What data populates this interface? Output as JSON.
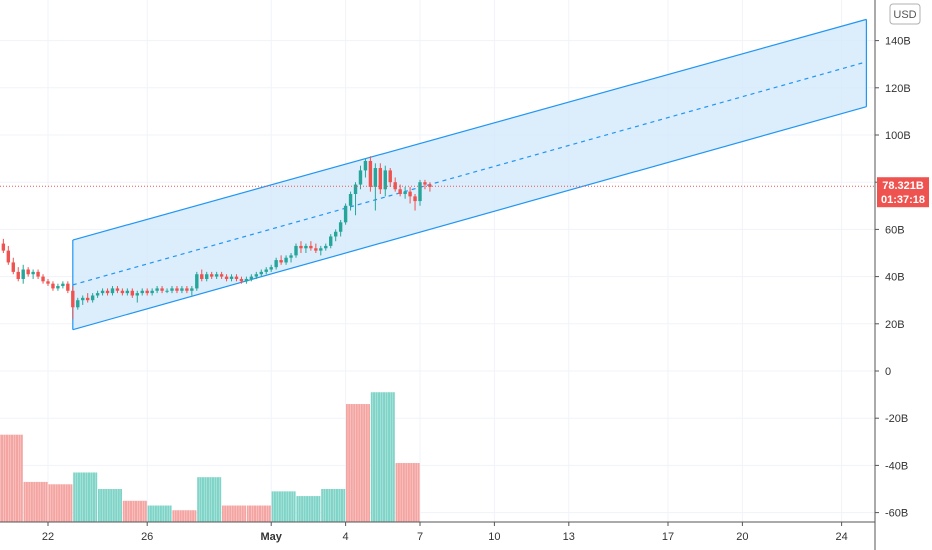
{
  "chart_data": {
    "type": "candlestick",
    "currency": "USD",
    "y_axis": {
      "range": [
        -66,
        153
      ],
      "ticks": [
        "140B",
        "120B",
        "100B",
        "80B",
        "60B",
        "40B",
        "20B",
        "0",
        "-20B",
        "-40B",
        "-60B"
      ],
      "tick_values": [
        140,
        120,
        100,
        80,
        60,
        40,
        20,
        0,
        -20,
        -40,
        -60
      ]
    },
    "x_axis": {
      "ticks": [
        {
          "label": "22",
          "day": 0,
          "bold": false
        },
        {
          "label": "26",
          "day": 4,
          "bold": false
        },
        {
          "label": "May",
          "day": 9,
          "bold": true
        },
        {
          "label": "4",
          "day": 12,
          "bold": false
        },
        {
          "label": "7",
          "day": 15,
          "bold": false
        },
        {
          "label": "10",
          "day": 18,
          "bold": false
        },
        {
          "label": "13",
          "day": 21,
          "bold": false
        },
        {
          "label": "17",
          "day": 25,
          "bold": false
        },
        {
          "label": "20",
          "day": 28,
          "bold": false
        },
        {
          "label": "24",
          "day": 32,
          "bold": false
        }
      ]
    },
    "last_price": "78.321B",
    "last_price_value": 78.3,
    "countdown": "01:37:18",
    "colors": {
      "up": "#26a69a",
      "down": "#ef5350",
      "up_volume": "#7fd4c8",
      "down_volume": "#f4a4a1",
      "channel_line": "#2196f3",
      "channel_fill": "#d6eafb",
      "price_tag": "#ef5350"
    },
    "channel": {
      "start_day": 1,
      "end_day": 33,
      "upper": [
        55.5,
        149
      ],
      "middle": [
        36.5,
        131
      ],
      "lower": [
        17.5,
        112
      ]
    },
    "candles": [
      [
        -1.8,
        54,
        56,
        50,
        51
      ],
      [
        -1.6,
        51,
        53,
        45,
        46
      ],
      [
        -1.4,
        46,
        48,
        41,
        42
      ],
      [
        -1.2,
        42,
        44,
        38,
        39
      ],
      [
        -1.0,
        39,
        45,
        37,
        43
      ],
      [
        -0.8,
        43,
        44,
        40,
        41
      ],
      [
        -0.6,
        41,
        43,
        39,
        42
      ],
      [
        -0.4,
        42,
        43,
        39,
        40
      ],
      [
        -0.2,
        40,
        41,
        37,
        38
      ],
      [
        0.0,
        38,
        39,
        36,
        37
      ],
      [
        0.2,
        37,
        38,
        34,
        35
      ],
      [
        0.4,
        35,
        37,
        34,
        36
      ],
      [
        0.6,
        36,
        38,
        35,
        37
      ],
      [
        0.8,
        37,
        38,
        33,
        34
      ],
      [
        1.0,
        34,
        36,
        22,
        27
      ],
      [
        1.2,
        27,
        31,
        26,
        30
      ],
      [
        1.4,
        30,
        32,
        28,
        31
      ],
      [
        1.6,
        31,
        33,
        29,
        30
      ],
      [
        1.8,
        30,
        33,
        29,
        32
      ],
      [
        2.0,
        32,
        34,
        31,
        33
      ],
      [
        2.2,
        33,
        35,
        32,
        34
      ],
      [
        2.4,
        34,
        35,
        32,
        33
      ],
      [
        2.6,
        33,
        36,
        32,
        35
      ],
      [
        2.8,
        35,
        36,
        33,
        34
      ],
      [
        3.0,
        34,
        35,
        32,
        33
      ],
      [
        3.2,
        33,
        35,
        32,
        34
      ],
      [
        3.4,
        34,
        35,
        31,
        32
      ],
      [
        3.6,
        32,
        34,
        29,
        33
      ],
      [
        3.8,
        33,
        35,
        32,
        34
      ],
      [
        4.0,
        34,
        35,
        32,
        33
      ],
      [
        4.2,
        33,
        35,
        32,
        34
      ],
      [
        4.4,
        34,
        36,
        33,
        35
      ],
      [
        4.6,
        35,
        36,
        33,
        34
      ],
      [
        4.8,
        34,
        35,
        33,
        34
      ],
      [
        5.0,
        34,
        36,
        33,
        35
      ],
      [
        5.2,
        35,
        36,
        33,
        34
      ],
      [
        5.4,
        34,
        36,
        33,
        35
      ],
      [
        5.6,
        35,
        36,
        33,
        34
      ],
      [
        5.8,
        34,
        36,
        32,
        35
      ],
      [
        6.0,
        35,
        42,
        34,
        41
      ],
      [
        6.2,
        41,
        43,
        38,
        39
      ],
      [
        6.4,
        39,
        42,
        38,
        41
      ],
      [
        6.6,
        41,
        42,
        39,
        40
      ],
      [
        6.8,
        40,
        42,
        39,
        41
      ],
      [
        7.0,
        41,
        42,
        39,
        40
      ],
      [
        7.2,
        40,
        41,
        38,
        39
      ],
      [
        7.4,
        39,
        41,
        38,
        40
      ],
      [
        7.6,
        40,
        41,
        38,
        39
      ],
      [
        7.8,
        39,
        40,
        37,
        38
      ],
      [
        8.0,
        38,
        40,
        37,
        39
      ],
      [
        8.2,
        39,
        41,
        38,
        40
      ],
      [
        8.4,
        40,
        42,
        39,
        41
      ],
      [
        8.6,
        41,
        43,
        40,
        42
      ],
      [
        8.8,
        42,
        44,
        41,
        43
      ],
      [
        9.0,
        43,
        45,
        42,
        44
      ],
      [
        9.2,
        44,
        48,
        43,
        47
      ],
      [
        9.4,
        47,
        49,
        45,
        46
      ],
      [
        9.6,
        46,
        49,
        45,
        48
      ],
      [
        9.8,
        48,
        50,
        46,
        49
      ],
      [
        10.0,
        49,
        54,
        48,
        53
      ],
      [
        10.2,
        53,
        55,
        50,
        52
      ],
      [
        10.4,
        52,
        54,
        50,
        53
      ],
      [
        10.6,
        53,
        55,
        51,
        52
      ],
      [
        10.8,
        52,
        54,
        50,
        51
      ],
      [
        11.0,
        51,
        53,
        49,
        52
      ],
      [
        11.2,
        52,
        54,
        51,
        53
      ],
      [
        11.4,
        53,
        58,
        52,
        57
      ],
      [
        11.6,
        57,
        60,
        55,
        59
      ],
      [
        11.8,
        59,
        64,
        57,
        63
      ],
      [
        12.0,
        63,
        71,
        62,
        70
      ],
      [
        12.2,
        70,
        76,
        68,
        75
      ],
      [
        12.4,
        75,
        80,
        66,
        79
      ],
      [
        12.6,
        79,
        87,
        77,
        85
      ],
      [
        12.8,
        85,
        90,
        82,
        89
      ],
      [
        13.0,
        89,
        91,
        76,
        78
      ],
      [
        13.2,
        78,
        88,
        68,
        86
      ],
      [
        13.4,
        86,
        88,
        75,
        77
      ],
      [
        13.6,
        77,
        87,
        74,
        85
      ],
      [
        13.8,
        85,
        86,
        78,
        80
      ],
      [
        14.0,
        80,
        82,
        76,
        77
      ],
      [
        14.2,
        77,
        79,
        74,
        75
      ],
      [
        14.4,
        75,
        78,
        73,
        76
      ],
      [
        14.6,
        76,
        78,
        71,
        74
      ],
      [
        14.8,
        74,
        75,
        68,
        72
      ],
      [
        15.0,
        72,
        81,
        70,
        80
      ],
      [
        15.2,
        80,
        81,
        77,
        79
      ],
      [
        15.4,
        79,
        80,
        76,
        78
      ]
    ],
    "volume": [
      [
        -1.5,
        -27,
        "down"
      ],
      [
        -0.5,
        -47,
        "down"
      ],
      [
        0.5,
        -48,
        "down"
      ],
      [
        1.5,
        -43,
        "up"
      ],
      [
        2.5,
        -50,
        "up"
      ],
      [
        3.5,
        -55,
        "down"
      ],
      [
        4.5,
        -57,
        "up"
      ],
      [
        5.5,
        -59,
        "down"
      ],
      [
        6.5,
        -45,
        "up"
      ],
      [
        7.5,
        -57,
        "down"
      ],
      [
        8.5,
        -57,
        "down"
      ],
      [
        9.5,
        -51,
        "up"
      ],
      [
        10.5,
        -53,
        "up"
      ],
      [
        11.5,
        -50,
        "up"
      ],
      [
        12.5,
        -14,
        "down"
      ],
      [
        13.5,
        -9,
        "up"
      ],
      [
        14.5,
        -39,
        "down"
      ]
    ]
  }
}
